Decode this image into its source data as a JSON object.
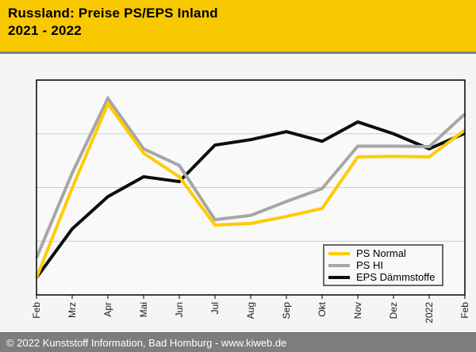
{
  "header": {
    "title_line1": "Russland: Preise PS/EPS Inland",
    "title_line2": "2021 - 2022",
    "bg_color": "#f8c800"
  },
  "footer": {
    "text": "© 2022 Kunststoff Information, Bad Homburg - www.kiweb.de",
    "bg_color": "#7d7d7d"
  },
  "chart_data": {
    "type": "line",
    "title": "Russland: Preise PS/EPS Inland 2021 - 2022",
    "xlabel": "",
    "ylabel": "",
    "categories": [
      "Feb",
      "Mrz",
      "Apr",
      "Mai",
      "Jun",
      "Jul",
      "Aug",
      "Sep",
      "Okt",
      "Nov",
      "Dez",
      "2022",
      "Feb"
    ],
    "x_axis": {
      "tick_labels_rotated_degrees": -90,
      "note": "months Feb 2021 through Feb 2022; '2022' marks January 2022"
    },
    "y_axis": {
      "tick_labels_visible": false,
      "ylim": [
        0,
        4
      ],
      "unit": "relative price level in gridline units (axis is unlabeled in source image)",
      "gridlines_at": [
        1,
        2,
        3
      ]
    },
    "grid": true,
    "legend": {
      "position": "inside bottom-right"
    },
    "series": [
      {
        "name": "PS Normal",
        "color": "#ffcc00",
        "values": [
          0.32,
          1.99,
          3.56,
          2.64,
          2.2,
          1.3,
          1.33,
          1.46,
          1.61,
          2.57,
          2.58,
          2.57,
          3.07
        ]
      },
      {
        "name": "PS HI",
        "color": "#a6a6a6",
        "values": [
          0.69,
          2.27,
          3.66,
          2.72,
          2.41,
          1.4,
          1.48,
          1.74,
          1.98,
          2.77,
          2.77,
          2.76,
          3.37
        ]
      },
      {
        "name": "EPS Dämmstoffe",
        "color": "#0d0d0d",
        "values": [
          0.32,
          1.23,
          1.83,
          2.2,
          2.11,
          2.79,
          2.89,
          3.04,
          2.86,
          3.22,
          3.0,
          2.72,
          3.01
        ]
      }
    ],
    "style": {
      "plot_bg": "#f9f9f9",
      "outer_bg": "#f5f5f5",
      "grid_color": "#cdcdcd",
      "frame_color": "#000000",
      "line_width": 4
    }
  }
}
